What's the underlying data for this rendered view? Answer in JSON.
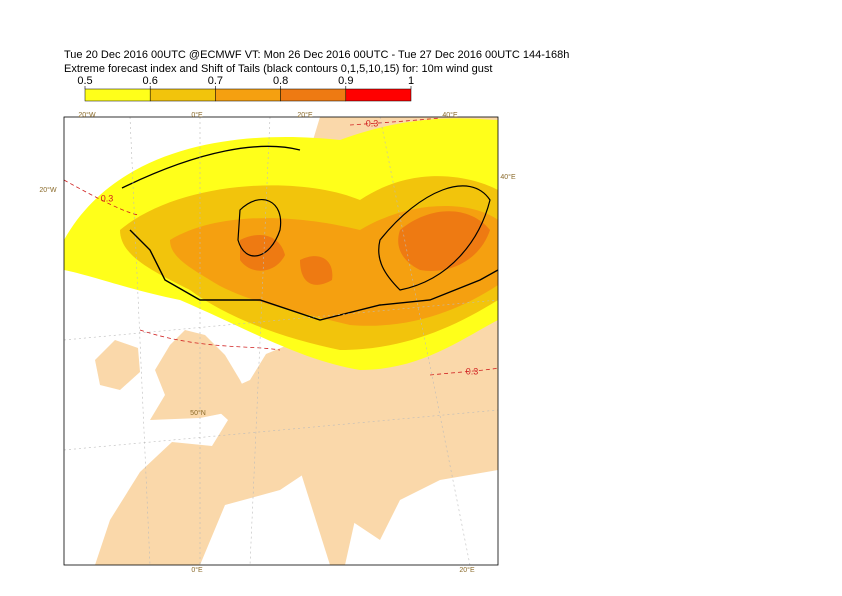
{
  "header": {
    "lines": [
      "Tue 20 Dec 2016 00UTC @ECMWF VT: Mon 26 Dec 2016 00UTC - Tue 27 Dec 2016 00UTC  144-168h",
      "Extreme forecast index and Shift of Tails (black contours 0,1,5,10,15) for: 10m wind gust"
    ]
  },
  "colorbar": {
    "levels": [
      0.5,
      0.6,
      0.7,
      0.8,
      0.9,
      1
    ],
    "colors": [
      "#ffff1a",
      "#f2c40c",
      "#f5a010",
      "#ee7a12",
      "#ff0000"
    ]
  },
  "map": {
    "graticule_labels": [
      "20°W",
      "0°E",
      "20°E",
      "40°E",
      "20°W",
      "40°E",
      "50°N",
      "0°E",
      "20°E"
    ],
    "contour_labels": [
      "0.3",
      "0.3",
      "0.3"
    ]
  }
}
